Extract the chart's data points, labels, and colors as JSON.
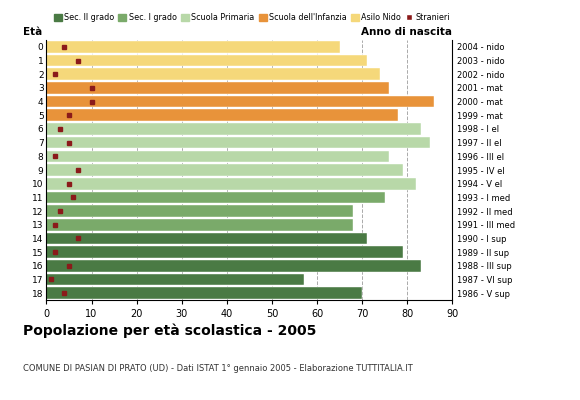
{
  "ages": [
    18,
    17,
    16,
    15,
    14,
    13,
    12,
    11,
    10,
    9,
    8,
    7,
    6,
    5,
    4,
    3,
    2,
    1,
    0
  ],
  "bar_values": [
    70,
    57,
    83,
    79,
    71,
    68,
    68,
    75,
    82,
    79,
    76,
    85,
    83,
    78,
    86,
    76,
    74,
    71,
    65
  ],
  "stranieri": [
    4,
    1,
    5,
    2,
    7,
    2,
    3,
    6,
    5,
    7,
    2,
    5,
    3,
    5,
    10,
    10,
    2,
    7,
    4
  ],
  "right_labels": [
    "1986 - V sup",
    "1987 - VI sup",
    "1988 - III sup",
    "1989 - II sup",
    "1990 - I sup",
    "1991 - III med",
    "1992 - II med",
    "1993 - I med",
    "1994 - V el",
    "1995 - IV el",
    "1996 - III el",
    "1997 - II el",
    "1998 - I el",
    "1999 - mat",
    "2000 - mat",
    "2001 - mat",
    "2002 - nido",
    "2003 - nido",
    "2004 - nido"
  ],
  "colors": {
    "sec_II": "#4a7a44",
    "sec_I": "#7aaa6a",
    "primaria": "#b8d8a8",
    "infanzia": "#e8933a",
    "nido": "#f5d87a",
    "stranieri": "#8b1a1a"
  },
  "legend_labels": [
    "Sec. II grado",
    "Sec. I grado",
    "Scuola Primaria",
    "Scuola dell'Infanzia",
    "Asilo Nido",
    "Stranieri"
  ],
  "title": "Popolazione per età scolastica - 2005",
  "subtitle": "COMUNE DI PASIAN DI PRATO (UD) - Dati ISTAT 1° gennaio 2005 - Elaborazione TUTTITALIA.IT",
  "ylabel_left": "Età",
  "ylabel_right": "Anno di nascita",
  "xlim": [
    0,
    90
  ],
  "xticks": [
    0,
    10,
    20,
    30,
    40,
    50,
    60,
    70,
    80,
    90
  ]
}
